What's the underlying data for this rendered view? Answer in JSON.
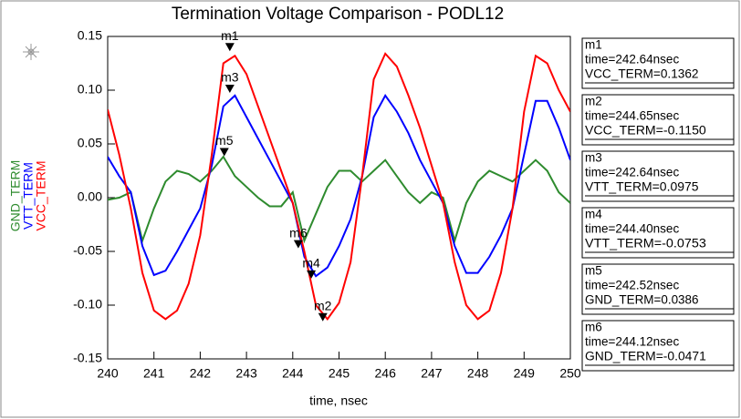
{
  "chart_data": {
    "type": "line",
    "title": "Termination Voltage Comparison - PODL12",
    "x_label": "time, nsec",
    "x": [
      240,
      240.25,
      240.5,
      240.75,
      241,
      241.25,
      241.5,
      241.75,
      242,
      242.25,
      242.5,
      242.75,
      243,
      243.25,
      243.5,
      243.75,
      244,
      244.25,
      244.5,
      244.75,
      245,
      245.25,
      245.5,
      245.75,
      246,
      246.25,
      246.5,
      246.75,
      247,
      247.25,
      247.5,
      247.75,
      248,
      248.25,
      248.5,
      248.75,
      249,
      249.25,
      249.5,
      249.75,
      250
    ],
    "series": [
      {
        "name": "GND_TERM",
        "color": "#2e8b2e",
        "values": [
          -0.002,
          0.0,
          0.005,
          -0.04,
          -0.01,
          0.015,
          0.025,
          0.022,
          0.015,
          0.025,
          0.038,
          0.02,
          0.01,
          0.0,
          -0.008,
          -0.008,
          0.005,
          -0.04,
          -0.015,
          0.01,
          0.025,
          0.025,
          0.015,
          0.025,
          0.035,
          0.02,
          0.005,
          -0.005,
          0.005,
          0.0,
          -0.04,
          -0.005,
          0.015,
          0.025,
          0.02,
          0.015,
          0.025,
          0.035,
          0.025,
          0.005,
          -0.005
        ]
      },
      {
        "name": "VTT_TERM",
        "color": "#0000ff",
        "values": [
          0.038,
          0.02,
          0.005,
          -0.045,
          -0.072,
          -0.068,
          -0.05,
          -0.03,
          -0.01,
          0.03,
          0.085,
          0.095,
          0.075,
          0.055,
          0.035,
          0.015,
          -0.005,
          -0.055,
          -0.073,
          -0.065,
          -0.045,
          -0.02,
          0.02,
          0.075,
          0.095,
          0.08,
          0.06,
          0.035,
          0.015,
          -0.005,
          -0.045,
          -0.07,
          -0.07,
          -0.055,
          -0.035,
          -0.01,
          0.04,
          0.09,
          0.09,
          0.065,
          0.035
        ]
      },
      {
        "name": "VCC_TERM",
        "color": "#ff0000",
        "values": [
          0.082,
          0.04,
          -0.01,
          -0.07,
          -0.105,
          -0.113,
          -0.105,
          -0.08,
          -0.035,
          0.04,
          0.125,
          0.132,
          0.115,
          0.085,
          0.055,
          0.025,
          -0.005,
          -0.05,
          -0.1,
          -0.113,
          -0.098,
          -0.06,
          0.02,
          0.11,
          0.134,
          0.122,
          0.095,
          0.065,
          0.03,
          -0.005,
          -0.06,
          -0.1,
          -0.113,
          -0.105,
          -0.07,
          -0.01,
          0.08,
          0.132,
          0.125,
          0.1,
          0.08
        ]
      }
    ],
    "xlim": [
      240,
      250
    ],
    "xticks": [
      240,
      241,
      242,
      243,
      244,
      245,
      246,
      247,
      248,
      249,
      250
    ],
    "ylim": [
      -0.15,
      0.15
    ],
    "yticks": [
      -0.15,
      {
        "value": -0.1,
        "label": "-0.10"
      },
      -0.05,
      {
        "value": 0,
        "label": "0.00"
      },
      0.05,
      {
        "value": 0.1,
        "label": "0.10"
      },
      0.15
    ],
    "markers": [
      {
        "name": "m1",
        "x": 242.64,
        "y": 0.1362,
        "time_label": "time=242.64nsec",
        "value_label": "VCC_TERM=0.1362"
      },
      {
        "name": "m2",
        "x": 244.65,
        "y": -0.115,
        "time_label": "time=244.65nsec",
        "value_label": "VCC_TERM=-0.1150"
      },
      {
        "name": "m3",
        "x": 242.64,
        "y": 0.0975,
        "time_label": "time=242.64nsec",
        "value_label": "VTT_TERM=0.0975"
      },
      {
        "name": "m4",
        "x": 244.4,
        "y": -0.0753,
        "time_label": "time=244.40nsec",
        "value_label": "VTT_TERM=-0.0753"
      },
      {
        "name": "m5",
        "x": 242.52,
        "y": 0.0386,
        "time_label": "time=242.52nsec",
        "value_label": "GND_TERM=0.0386"
      },
      {
        "name": "m6",
        "x": 244.12,
        "y": -0.0471,
        "time_label": "time=244.12nsec",
        "value_label": "GND_TERM=-0.0471"
      }
    ]
  }
}
